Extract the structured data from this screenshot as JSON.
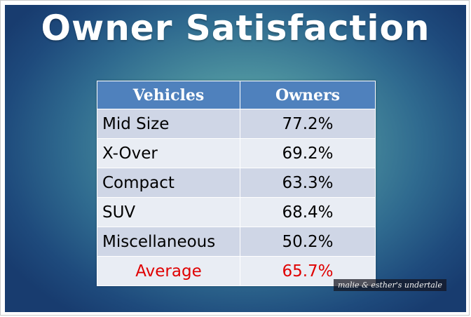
{
  "title": "Owner Satisfaction",
  "table": {
    "headers": [
      "Vehicles",
      "Owners"
    ],
    "rows": [
      {
        "vehicle": "Mid Size",
        "owners": "77.2%"
      },
      {
        "vehicle": "X-Over",
        "owners": "69.2%"
      },
      {
        "vehicle": "Compact",
        "owners": "63.3%"
      },
      {
        "vehicle": "SUV",
        "owners": "68.4%"
      },
      {
        "vehicle": "Miscellaneous",
        "owners": "50.2%"
      }
    ],
    "average": {
      "label": "Average",
      "value": "65.7%"
    }
  },
  "colors": {
    "header_bg": "#4f81bd",
    "average_text": "#e00000",
    "background_center": "#6fb2a1",
    "background_edge": "#183c6f"
  },
  "watermark": "malie & esther's undertale"
}
